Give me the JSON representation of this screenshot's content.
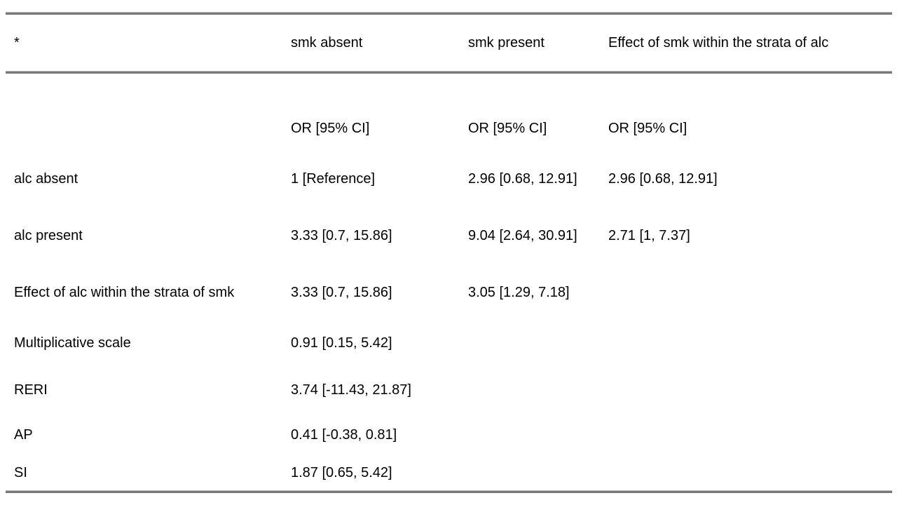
{
  "table": {
    "columns": [
      "*",
      "smk absent",
      "smk present",
      "Effect of smk within the strata of alc"
    ],
    "rows": [
      {
        "label": "",
        "cells": [
          "OR [95% CI]",
          "OR [95% CI]",
          "OR [95% CI]"
        ]
      },
      {
        "label": "alc absent",
        "cells": [
          "1 [Reference]",
          "2.96 [0.68, 12.91]",
          "2.96 [0.68, 12.91]"
        ]
      },
      {
        "label": "alc present",
        "cells": [
          "3.33 [0.7, 15.86]",
          "9.04 [2.64, 30.91]",
          "2.71 [1, 7.37]"
        ]
      },
      {
        "label": "Effect of alc within the strata of smk",
        "cells": [
          "3.33 [0.7, 15.86]",
          "3.05 [1.29, 7.18]",
          ""
        ]
      },
      {
        "label": "Multiplicative scale",
        "cells": [
          "0.91 [0.15, 5.42]",
          "",
          ""
        ]
      },
      {
        "label": "RERI",
        "cells": [
          "3.74 [-11.43, 21.87]",
          "",
          ""
        ]
      },
      {
        "label": "AP",
        "cells": [
          "0.41 [-0.38, 0.81]",
          "",
          ""
        ]
      },
      {
        "label": "SI",
        "cells": [
          "1.87 [0.65, 5.42]",
          "",
          ""
        ]
      }
    ],
    "colors": {
      "rule": "#7a7a7a",
      "text": "#000000",
      "background": "#ffffff"
    }
  }
}
